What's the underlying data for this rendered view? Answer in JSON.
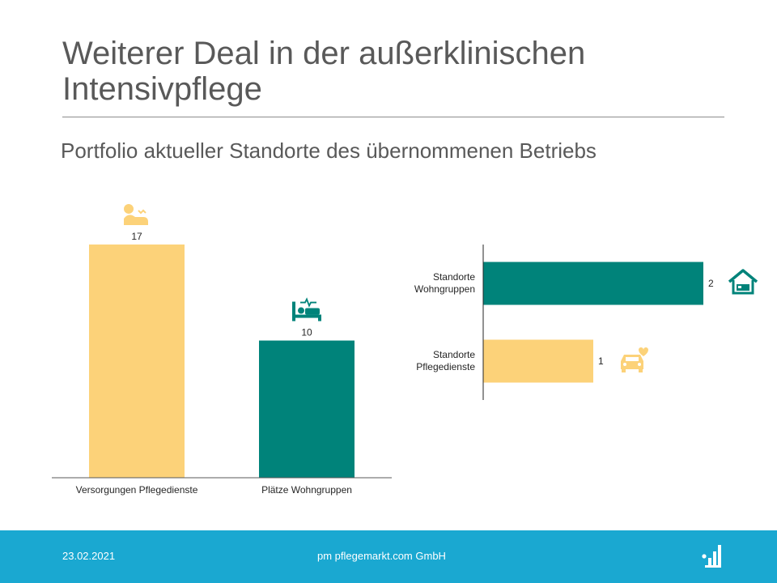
{
  "slide": {
    "title": "Weiterer Deal in der außerklinischen Intensivpflege",
    "subtitle": "Portfolio aktueller Standorte des übernommenen Betriebs"
  },
  "footer": {
    "date": "23.02.2021",
    "company": "pm pflegemarkt.com GmbH"
  },
  "colors": {
    "yellow": "#fcd279",
    "teal": "#00837a",
    "footer": "#1aa8d1",
    "text": "#595959"
  },
  "chart_data": [
    {
      "type": "bar",
      "orientation": "vertical",
      "categories": [
        "Versorgungen  Pflegedienste",
        "Plätze Wohngruppen"
      ],
      "values": [
        17,
        10
      ],
      "data_labels": [
        "17",
        "10"
      ],
      "bar_colors": [
        "#fcd279",
        "#00837a"
      ],
      "icons": [
        "nurse-care-icon",
        "hospital-bed-icon"
      ],
      "ylim": [
        0,
        18
      ],
      "grid": false
    },
    {
      "type": "bar",
      "orientation": "horizontal",
      "categories": [
        [
          "Standorte",
          "Wohngruppen"
        ],
        [
          "Standorte",
          "Pflegedienste"
        ]
      ],
      "values": [
        2,
        1
      ],
      "data_labels": [
        "2",
        "1"
      ],
      "bar_colors": [
        "#00837a",
        "#fcd279"
      ],
      "icons": [
        "house-icon",
        "care-car-icon"
      ],
      "xlim": [
        0,
        2
      ],
      "grid": false
    }
  ]
}
